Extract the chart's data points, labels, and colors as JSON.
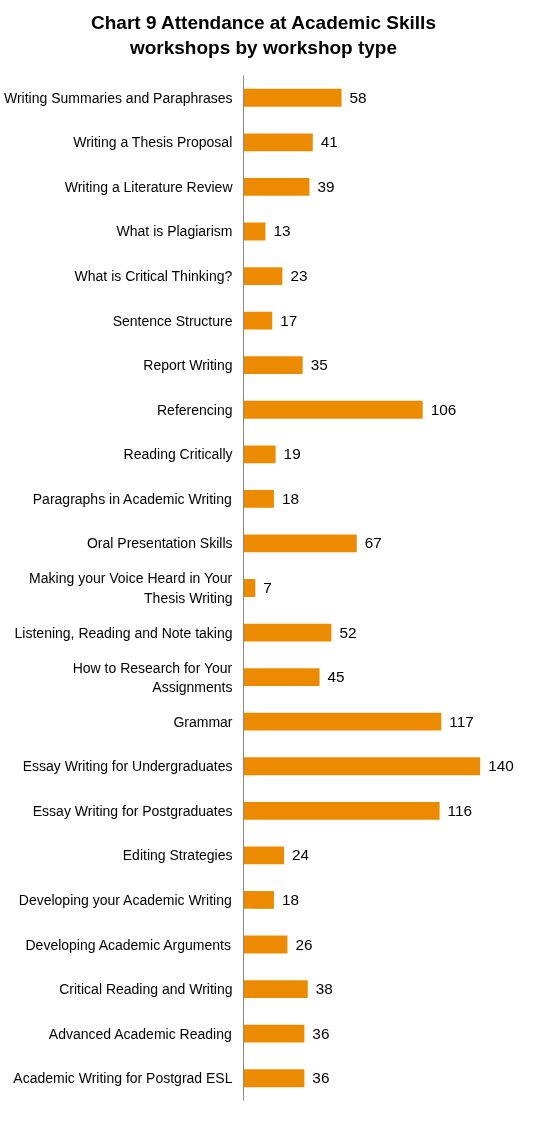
{
  "chart_data": {
    "type": "bar",
    "orientation": "horizontal",
    "title": "Chart 9 Attendance at Academic Skills workshops by workshop type",
    "categories": [
      "Writing Summaries and Paraphrases",
      "Writing a Thesis Proposal",
      "Writing a Literature Review",
      "What is Plagiarism",
      "What is Critical Thinking?",
      "Sentence Structure",
      "Report Writing",
      "Referencing",
      "Reading Critically",
      "Paragraphs in Academic Writing",
      "Oral Presentation Skills",
      "Making your Voice Heard in Your Thesis Writing",
      "Listening, Reading and Note taking",
      "How to Research for Your Assignments",
      "Grammar",
      "Essay Writing for Undergraduates",
      "Essay Writing for Postgraduates",
      "Editing Strategies",
      "Developing your Academic Writing",
      "Developing Academic Arguments",
      "Critical Reading and Writing",
      "Advanced Academic Reading",
      "Academic Writing for Postgrad ESL"
    ],
    "values": [
      58,
      41,
      39,
      13,
      23,
      17,
      35,
      106,
      19,
      18,
      67,
      7,
      52,
      45,
      117,
      140,
      116,
      24,
      18,
      26,
      38,
      36,
      36
    ],
    "color": "#ed8b00",
    "data_labels": true,
    "grid": false
  }
}
